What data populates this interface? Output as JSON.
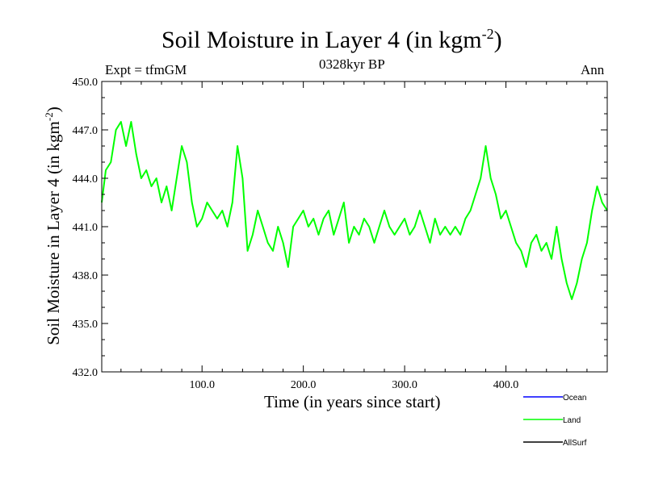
{
  "chart_data": {
    "type": "line",
    "title_main": "Soil Moisture in Layer 4 (in kgm",
    "title_sup": "-2",
    "title_close": ")",
    "subtitle_left": "Expt = tfmGM",
    "subtitle_center": "0328kyr BP",
    "subtitle_right": "Ann",
    "xlabel": "Time (in years since start)",
    "ylabel_main": "Soil Moisture in Layer 4 (in kgm",
    "ylabel_sup": "-2",
    "ylabel_close": ")",
    "xlim": [
      1,
      500
    ],
    "ylim": [
      432.0,
      450.0
    ],
    "x_ticks": [
      100,
      200,
      300,
      400
    ],
    "x_tick_labels": [
      "100.0",
      "200.0",
      "300.0",
      "400.0"
    ],
    "y_ticks": [
      432,
      435,
      438,
      441,
      444,
      447,
      450
    ],
    "y_tick_labels": [
      "432.0",
      "435.0",
      "438.0",
      "441.0",
      "444.0",
      "447.0",
      "450.0"
    ],
    "grid": false,
    "legend_position": "below-right",
    "series": [
      {
        "name": "Ocean",
        "color": "#0000ff",
        "values": []
      },
      {
        "name": "Land",
        "color": "#00ff00",
        "x": [
          1,
          5,
          10,
          15,
          20,
          25,
          30,
          35,
          40,
          45,
          50,
          55,
          60,
          65,
          70,
          75,
          80,
          85,
          90,
          95,
          100,
          105,
          110,
          115,
          120,
          125,
          130,
          135,
          140,
          145,
          150,
          155,
          160,
          165,
          170,
          175,
          180,
          185,
          190,
          195,
          200,
          205,
          210,
          215,
          220,
          225,
          230,
          235,
          240,
          245,
          250,
          255,
          260,
          265,
          270,
          275,
          280,
          285,
          290,
          295,
          300,
          305,
          310,
          315,
          320,
          325,
          330,
          335,
          340,
          345,
          350,
          355,
          360,
          365,
          370,
          375,
          380,
          385,
          390,
          395,
          400,
          405,
          410,
          415,
          420,
          425,
          430,
          435,
          440,
          445,
          450,
          455,
          460,
          465,
          470,
          475,
          480,
          485,
          490,
          495,
          500
        ],
        "values": [
          442.5,
          444.5,
          445.0,
          447.0,
          447.5,
          446.0,
          447.5,
          445.5,
          444.0,
          444.5,
          443.5,
          444.0,
          442.5,
          443.5,
          442.0,
          444.0,
          446.0,
          445.0,
          442.5,
          441.0,
          441.5,
          442.5,
          442.0,
          441.5,
          442.0,
          441.0,
          442.5,
          446.0,
          444.0,
          439.5,
          440.5,
          442.0,
          441.0,
          440.0,
          439.5,
          441.0,
          440.0,
          438.5,
          441.0,
          441.5,
          442.0,
          441.0,
          441.5,
          440.5,
          441.5,
          442.0,
          440.5,
          441.5,
          442.5,
          440.0,
          441.0,
          440.5,
          441.5,
          441.0,
          440.0,
          441.0,
          442.0,
          441.0,
          440.5,
          441.0,
          441.5,
          440.5,
          441.0,
          442.0,
          441.0,
          440.0,
          441.5,
          440.5,
          441.0,
          440.5,
          441.0,
          440.5,
          441.5,
          442.0,
          443.0,
          444.0,
          446.0,
          444.0,
          443.0,
          441.5,
          442.0,
          441.0,
          440.0,
          439.5,
          438.5,
          440.0,
          440.5,
          439.5,
          440.0,
          439.0,
          441.0,
          439.0,
          437.5,
          436.5,
          437.5,
          439.0,
          440.0,
          442.0,
          443.5,
          442.5,
          442.0
        ]
      },
      {
        "name": "AllSurf",
        "color": "#000000",
        "values": []
      }
    ]
  }
}
